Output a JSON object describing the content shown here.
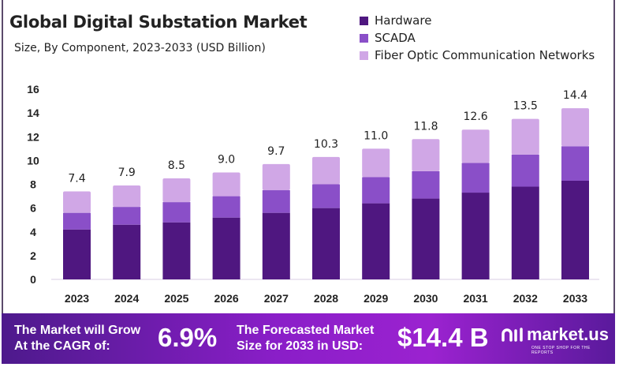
{
  "chart_data": {
    "type": "bar",
    "stacked": true,
    "title": "Global Digital Substation Market",
    "subtitle": "Size, By Component, 2023-2033 (USD Billion)",
    "categories": [
      "2023",
      "2024",
      "2025",
      "2026",
      "2027",
      "2028",
      "2029",
      "2030",
      "2031",
      "2032",
      "2033"
    ],
    "series": [
      {
        "name": "Hardware",
        "color": "#4f1780",
        "values": [
          4.2,
          4.6,
          4.8,
          5.2,
          5.6,
          6.0,
          6.4,
          6.8,
          7.3,
          7.8,
          8.3
        ]
      },
      {
        "name": "SCADA",
        "color": "#8a4fc8",
        "values": [
          1.4,
          1.5,
          1.7,
          1.8,
          1.9,
          2.0,
          2.2,
          2.3,
          2.5,
          2.7,
          2.9
        ]
      },
      {
        "name": "Fiber Optic Communication Networks",
        "color": "#d0a7e6",
        "values": [
          1.8,
          1.8,
          2.0,
          2.0,
          2.2,
          2.3,
          2.4,
          2.7,
          2.8,
          3.0,
          3.2
        ]
      }
    ],
    "totals": [
      "7.4",
      "7.9",
      "8.5",
      "9.0",
      "9.7",
      "10.3",
      "11.0",
      "11.8",
      "12.6",
      "13.5",
      "14.4"
    ],
    "yticks": [
      "0",
      "2",
      "4",
      "6",
      "8",
      "10",
      "12",
      "14",
      "16"
    ],
    "ylim": [
      0,
      16
    ],
    "legend": "top-right",
    "grid": false
  },
  "banner": {
    "cagr_text_1": "The Market will Grow",
    "cagr_text_2": "At the CAGR of:",
    "cagr_value": "6.9%",
    "forecast_text_1": "The Forecasted Market",
    "forecast_text_2": "Size for 2033 in USD:",
    "forecast_value": "$14.4 B",
    "logo_name": "market.us",
    "logo_tagline": "ONE STOP SHOP FOR THE REPORTS"
  }
}
